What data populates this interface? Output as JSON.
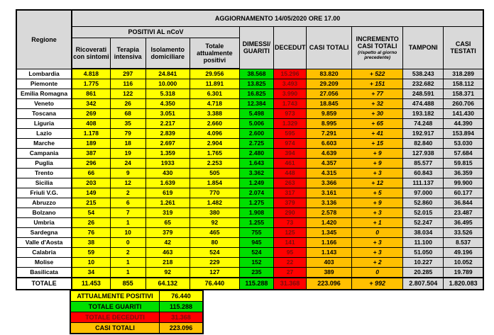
{
  "title": "AGGIORNAMENTO 14/05/2020 ORE 17.00",
  "table": {
    "headers": {
      "regione": "Regione",
      "positivi_group": "POSITIVI AL nCoV",
      "ricoverati": "Ricoverati con sintomi",
      "terapia": "Terapia intensiva",
      "isolamento": "Isolamento domiciliare",
      "totale_positivi": "Totale attualmente positivi",
      "dimessi": "DIMESSI/ GUARITI",
      "deceduti": "DECEDUTI",
      "casi_totali": "CASI TOTALI",
      "incremento": "INCREMENTO CASI  TOTALI",
      "incremento_note": "(rispetto al giorno precedente)",
      "tamponi": "TAMPONI",
      "casi_testati": "CASI TESTATI"
    },
    "rows": [
      [
        "Lombardia",
        "4.818",
        "297",
        "24.841",
        "29.956",
        "38.568",
        "15.296",
        "83.820",
        "+ 522",
        "538.243",
        "318.289"
      ],
      [
        "Piemonte",
        "1.775",
        "116",
        "10.000",
        "11.891",
        "13.825",
        "3.493",
        "29.209",
        "+ 151",
        "232.682",
        "158.112"
      ],
      [
        "Emilia Romagna",
        "861",
        "122",
        "5.318",
        "6.301",
        "16.825",
        "3.990",
        "27.056",
        "+ 77",
        "248.591",
        "158.371"
      ],
      [
        "Veneto",
        "342",
        "26",
        "4.350",
        "4.718",
        "12.384",
        "1.743",
        "18.845",
        "+ 32",
        "474.488",
        "260.706"
      ],
      [
        "Toscana",
        "269",
        "68",
        "3.051",
        "3.388",
        "5.498",
        "973",
        "9.859",
        "+ 30",
        "193.182",
        "141.430"
      ],
      [
        "Liguria",
        "408",
        "35",
        "2.217",
        "2.660",
        "5.006",
        "1.329",
        "8.995",
        "+ 65",
        "74.248",
        "44.390"
      ],
      [
        "Lazio",
        "1.178",
        "79",
        "2.839",
        "4.096",
        "2.600",
        "595",
        "7.291",
        "+ 41",
        "192.917",
        "153.894"
      ],
      [
        "Marche",
        "189",
        "18",
        "2.697",
        "2.904",
        "2.725",
        "974",
        "6.603",
        "+ 15",
        "82.840",
        "53.030"
      ],
      [
        "Campania",
        "387",
        "19",
        "1.359",
        "1.765",
        "2.480",
        "394",
        "4.639",
        "+ 9",
        "127.938",
        "57.684"
      ],
      [
        "Puglia",
        "296",
        "24",
        "1933",
        "2.253",
        "1.643",
        "461",
        "4.357",
        "+ 9",
        "85.577",
        "59.815"
      ],
      [
        "Trento",
        "66",
        "9",
        "430",
        "505",
        "3.362",
        "448",
        "4.315",
        "+ 3",
        "60.843",
        "36.359"
      ],
      [
        "Sicilia",
        "203",
        "12",
        "1.639",
        "1.854",
        "1.249",
        "263",
        "3.366",
        "+ 12",
        "111.137",
        "99.900"
      ],
      [
        "Friuli V.G.",
        "149",
        "2",
        "619",
        "770",
        "2.074",
        "317",
        "3.161",
        "+ 5",
        "97.000",
        "60.177"
      ],
      [
        "Abruzzo",
        "215",
        "6",
        "1.261",
        "1.482",
        "1.275",
        "379",
        "3.136",
        "+ 9",
        "52.860",
        "36.844"
      ],
      [
        "Bolzano",
        "54",
        "7",
        "319",
        "380",
        "1.908",
        "290",
        "2.578",
        "+ 3",
        "52.015",
        "23.487"
      ],
      [
        "Umbria",
        "26",
        "1",
        "65",
        "92",
        "1.255",
        "73",
        "1.420",
        "+ 1",
        "52.247",
        "36.495"
      ],
      [
        "Sardegna",
        "76",
        "10",
        "379",
        "465",
        "755",
        "125",
        "1.345",
        "0",
        "38.034",
        "33.526"
      ],
      [
        "Valle d'Aosta",
        "38",
        "0",
        "42",
        "80",
        "945",
        "141",
        "1.166",
        "+ 3",
        "11.100",
        "8.537"
      ],
      [
        "Calabria",
        "59",
        "2",
        "463",
        "524",
        "524",
        "95",
        "1.143",
        "+ 3",
        "51.050",
        "49.196"
      ],
      [
        "Molise",
        "10",
        "1",
        "218",
        "229",
        "152",
        "22",
        "403",
        "+ 2",
        "10.227",
        "10.052"
      ],
      [
        "Basilicata",
        "34",
        "1",
        "92",
        "127",
        "235",
        "27",
        "389",
        "0",
        "20.285",
        "19.789"
      ]
    ],
    "totale_row": [
      "TOTALE",
      "11.453",
      "855",
      "64.132",
      "76.440",
      "115.288",
      "31.368",
      "223.096",
      "+ 992",
      "2.807.504",
      "1.820.083"
    ]
  },
  "legend": {
    "rows": [
      {
        "label": "ATTUALMENTE POSITIVI",
        "value": "76.440",
        "color": "yellow"
      },
      {
        "label": "TOTALE GUARITI",
        "value": "115.288",
        "color": "green"
      },
      {
        "label": "TOTALE DECEDUTI",
        "value": "31.368",
        "color": "red"
      },
      {
        "label": "CASI TOTALI",
        "value": "223.096",
        "color": "orange"
      }
    ]
  },
  "colors": {
    "yellow": "#FFFF00",
    "green": "#00DF00",
    "red": "#FF0000",
    "red_text": "#7A0C0C",
    "orange": "#FFC000",
    "gray": "#D9D9D9"
  }
}
